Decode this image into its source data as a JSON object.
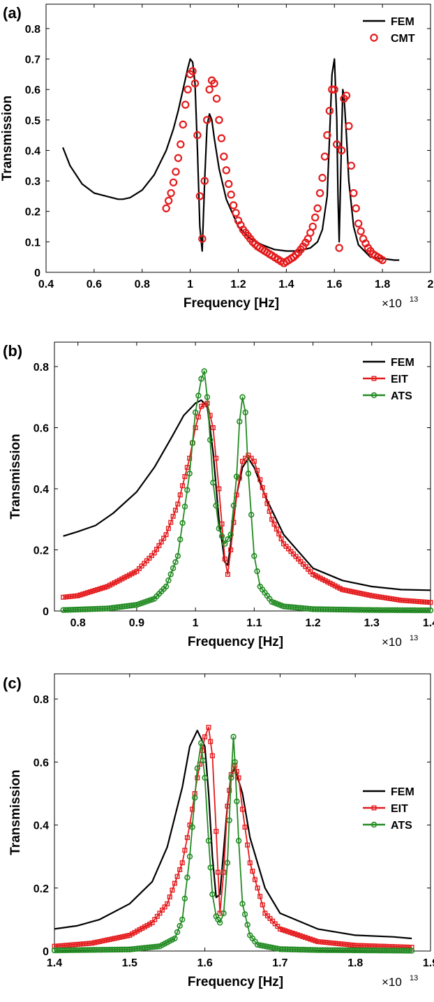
{
  "chart_data": [
    {
      "panel_label": "(a)",
      "type": "line",
      "xlabel": "Frequency [Hz]",
      "ylabel": "Transmission",
      "x_multiplier": "×10",
      "x_multiplier_exp": "13",
      "xlim": [
        0.4,
        2.0
      ],
      "ylim": [
        0,
        0.88
      ],
      "xticks": [
        "0.4",
        "0.6",
        "0.8",
        "1",
        "1.2",
        "1.4",
        "1.6",
        "1.8",
        "2"
      ],
      "yticks": [
        "0",
        "0.1",
        "0.2",
        "0.3",
        "0.4",
        "0.5",
        "0.6",
        "0.7",
        "0.8"
      ],
      "grid": false,
      "legend_position": "top-right",
      "series": [
        {
          "name": "FEM",
          "color": "#000000",
          "style": "line",
          "x": [
            0.47,
            0.5,
            0.55,
            0.6,
            0.65,
            0.7,
            0.72,
            0.75,
            0.8,
            0.85,
            0.9,
            0.93,
            0.95,
            0.97,
            0.99,
            1.0,
            1.01,
            1.02,
            1.03,
            1.04,
            1.05,
            1.06,
            1.07,
            1.08,
            1.09,
            1.1,
            1.12,
            1.15,
            1.2,
            1.25,
            1.3,
            1.35,
            1.4,
            1.45,
            1.5,
            1.53,
            1.55,
            1.57,
            1.58,
            1.59,
            1.6,
            1.61,
            1.615,
            1.62,
            1.63,
            1.635,
            1.64,
            1.65,
            1.66,
            1.68,
            1.7,
            1.75,
            1.8,
            1.85,
            1.87
          ],
          "y": [
            0.41,
            0.35,
            0.29,
            0.26,
            0.25,
            0.24,
            0.24,
            0.245,
            0.27,
            0.32,
            0.4,
            0.47,
            0.53,
            0.6,
            0.67,
            0.7,
            0.69,
            0.62,
            0.4,
            0.15,
            0.07,
            0.3,
            0.48,
            0.52,
            0.5,
            0.44,
            0.34,
            0.24,
            0.15,
            0.11,
            0.09,
            0.075,
            0.07,
            0.07,
            0.08,
            0.1,
            0.14,
            0.25,
            0.45,
            0.65,
            0.7,
            0.5,
            0.25,
            0.1,
            0.45,
            0.6,
            0.58,
            0.45,
            0.3,
            0.15,
            0.09,
            0.05,
            0.045,
            0.04,
            0.04
          ]
        },
        {
          "name": "CMT",
          "color": "#e41a1c",
          "style": "open-circle",
          "x": [
            0.9,
            0.92,
            0.94,
            0.96,
            0.98,
            1.0,
            1.01,
            1.02,
            1.03,
            1.04,
            1.05,
            1.06,
            1.07,
            1.08,
            1.09,
            1.1,
            1.11,
            1.12,
            1.14,
            1.16,
            1.18,
            1.2,
            1.22,
            1.24,
            1.26,
            1.28,
            1.3,
            1.32,
            1.34,
            1.39,
            1.41,
            1.43,
            1.45,
            1.47,
            1.49,
            1.51,
            1.53,
            1.55,
            1.57,
            1.58,
            1.59,
            1.6,
            1.61,
            1.62,
            1.63,
            1.64,
            1.65,
            1.66,
            1.67,
            1.68,
            1.7,
            1.72,
            1.74,
            1.76,
            1.78,
            1.8
          ],
          "y": [
            0.21,
            0.26,
            0.33,
            0.42,
            0.55,
            0.65,
            0.66,
            0.62,
            0.45,
            0.25,
            0.11,
            0.3,
            0.5,
            0.6,
            0.63,
            0.62,
            0.57,
            0.5,
            0.38,
            0.29,
            0.22,
            0.17,
            0.14,
            0.12,
            0.1,
            0.085,
            0.075,
            0.065,
            0.055,
            0.03,
            0.04,
            0.05,
            0.065,
            0.085,
            0.11,
            0.15,
            0.21,
            0.31,
            0.45,
            0.53,
            0.6,
            0.6,
            0.42,
            0.08,
            0.4,
            0.57,
            0.58,
            0.48,
            0.35,
            0.26,
            0.16,
            0.11,
            0.08,
            0.06,
            0.05,
            0.04
          ]
        }
      ]
    },
    {
      "panel_label": "(b)",
      "type": "line",
      "xlabel": "Frequency [Hz]",
      "ylabel": "Transmission",
      "x_multiplier": "×10",
      "x_multiplier_exp": "13",
      "xlim": [
        0.76,
        1.4
      ],
      "ylim": [
        0,
        0.88
      ],
      "xticks": [
        "0.8",
        "0.9",
        "1",
        "1.1",
        "1.2",
        "1.3",
        "1.4"
      ],
      "yticks": [
        "0",
        "0.2",
        "0.4",
        "0.6",
        "0.8"
      ],
      "grid": false,
      "legend_position": "top-right",
      "series": [
        {
          "name": "FEM",
          "color": "#000000",
          "style": "line",
          "x": [
            0.775,
            0.8,
            0.83,
            0.86,
            0.9,
            0.93,
            0.96,
            0.98,
            1.0,
            1.01,
            1.02,
            1.03,
            1.04,
            1.05,
            1.055,
            1.06,
            1.07,
            1.08,
            1.09,
            1.1,
            1.12,
            1.15,
            1.2,
            1.25,
            1.3,
            1.35,
            1.4
          ],
          "y": [
            0.245,
            0.26,
            0.28,
            0.32,
            0.39,
            0.47,
            0.57,
            0.64,
            0.68,
            0.69,
            0.67,
            0.52,
            0.3,
            0.16,
            0.15,
            0.22,
            0.38,
            0.47,
            0.5,
            0.47,
            0.37,
            0.25,
            0.14,
            0.1,
            0.08,
            0.07,
            0.068
          ]
        },
        {
          "name": "EIT",
          "color": "#e41a1c",
          "style": "line-square",
          "x": [
            0.775,
            0.8,
            0.85,
            0.9,
            0.93,
            0.95,
            0.97,
            0.99,
            1.0,
            1.01,
            1.02,
            1.03,
            1.04,
            1.05,
            1.055,
            1.06,
            1.07,
            1.08,
            1.09,
            1.1,
            1.11,
            1.13,
            1.15,
            1.2,
            1.25,
            1.3,
            1.35,
            1.4
          ],
          "y": [
            0.045,
            0.05,
            0.08,
            0.13,
            0.19,
            0.25,
            0.35,
            0.5,
            0.6,
            0.67,
            0.68,
            0.6,
            0.4,
            0.17,
            0.12,
            0.2,
            0.38,
            0.49,
            0.51,
            0.49,
            0.43,
            0.3,
            0.22,
            0.12,
            0.07,
            0.05,
            0.035,
            0.028
          ]
        },
        {
          "name": "ATS",
          "color": "#228b22",
          "style": "line-circle",
          "x": [
            0.775,
            0.85,
            0.9,
            0.93,
            0.95,
            0.97,
            0.99,
            1.0,
            1.01,
            1.015,
            1.02,
            1.03,
            1.04,
            1.05,
            1.06,
            1.07,
            1.075,
            1.08,
            1.085,
            1.09,
            1.1,
            1.11,
            1.13,
            1.15,
            1.2,
            1.3,
            1.4
          ],
          "y": [
            0.003,
            0.008,
            0.02,
            0.04,
            0.08,
            0.18,
            0.45,
            0.65,
            0.76,
            0.785,
            0.7,
            0.42,
            0.27,
            0.22,
            0.25,
            0.44,
            0.62,
            0.7,
            0.65,
            0.45,
            0.18,
            0.08,
            0.03,
            0.015,
            0.006,
            0.003,
            0.002
          ]
        }
      ]
    },
    {
      "panel_label": "(c)",
      "type": "line",
      "xlabel": "Frequency [Hz]",
      "ylabel": "Transmission",
      "x_multiplier": "×10",
      "x_multiplier_exp": "13",
      "xlim": [
        1.4,
        1.9
      ],
      "ylim": [
        0,
        0.88
      ],
      "xticks": [
        "1.4",
        "1.5",
        "1.6",
        "1.7",
        "1.8",
        "1.9"
      ],
      "yticks": [
        "0",
        "0.2",
        "0.4",
        "0.6",
        "0.8"
      ],
      "grid": false,
      "legend_position": "right",
      "series": [
        {
          "name": "FEM",
          "color": "#000000",
          "style": "line",
          "x": [
            1.4,
            1.43,
            1.46,
            1.5,
            1.53,
            1.55,
            1.57,
            1.58,
            1.59,
            1.6,
            1.605,
            1.61,
            1.615,
            1.62,
            1.63,
            1.635,
            1.64,
            1.65,
            1.66,
            1.68,
            1.7,
            1.75,
            1.8,
            1.85,
            1.875
          ],
          "y": [
            0.07,
            0.08,
            0.1,
            0.15,
            0.22,
            0.33,
            0.52,
            0.65,
            0.7,
            0.65,
            0.5,
            0.3,
            0.17,
            0.18,
            0.46,
            0.56,
            0.58,
            0.5,
            0.36,
            0.2,
            0.12,
            0.07,
            0.05,
            0.045,
            0.04
          ]
        },
        {
          "name": "EIT",
          "color": "#e41a1c",
          "style": "line-square",
          "x": [
            1.4,
            1.45,
            1.5,
            1.53,
            1.55,
            1.57,
            1.58,
            1.59,
            1.6,
            1.605,
            1.61,
            1.615,
            1.62,
            1.625,
            1.63,
            1.635,
            1.64,
            1.645,
            1.65,
            1.66,
            1.68,
            1.7,
            1.75,
            1.8,
            1.875
          ],
          "y": [
            0.015,
            0.025,
            0.05,
            0.09,
            0.15,
            0.28,
            0.4,
            0.55,
            0.68,
            0.71,
            0.62,
            0.38,
            0.12,
            0.25,
            0.46,
            0.56,
            0.59,
            0.55,
            0.45,
            0.28,
            0.12,
            0.07,
            0.03,
            0.018,
            0.012
          ]
        },
        {
          "name": "ATS",
          "color": "#228b22",
          "style": "line-circle",
          "x": [
            1.4,
            1.5,
            1.54,
            1.56,
            1.57,
            1.58,
            1.59,
            1.595,
            1.6,
            1.605,
            1.61,
            1.615,
            1.62,
            1.625,
            1.63,
            1.635,
            1.638,
            1.64,
            1.645,
            1.65,
            1.66,
            1.67,
            1.7,
            1.75,
            1.875
          ],
          "y": [
            0.002,
            0.005,
            0.015,
            0.04,
            0.1,
            0.3,
            0.58,
            0.66,
            0.55,
            0.35,
            0.18,
            0.11,
            0.09,
            0.12,
            0.28,
            0.55,
            0.68,
            0.6,
            0.35,
            0.15,
            0.05,
            0.02,
            0.006,
            0.003,
            0.001
          ]
        }
      ]
    }
  ]
}
